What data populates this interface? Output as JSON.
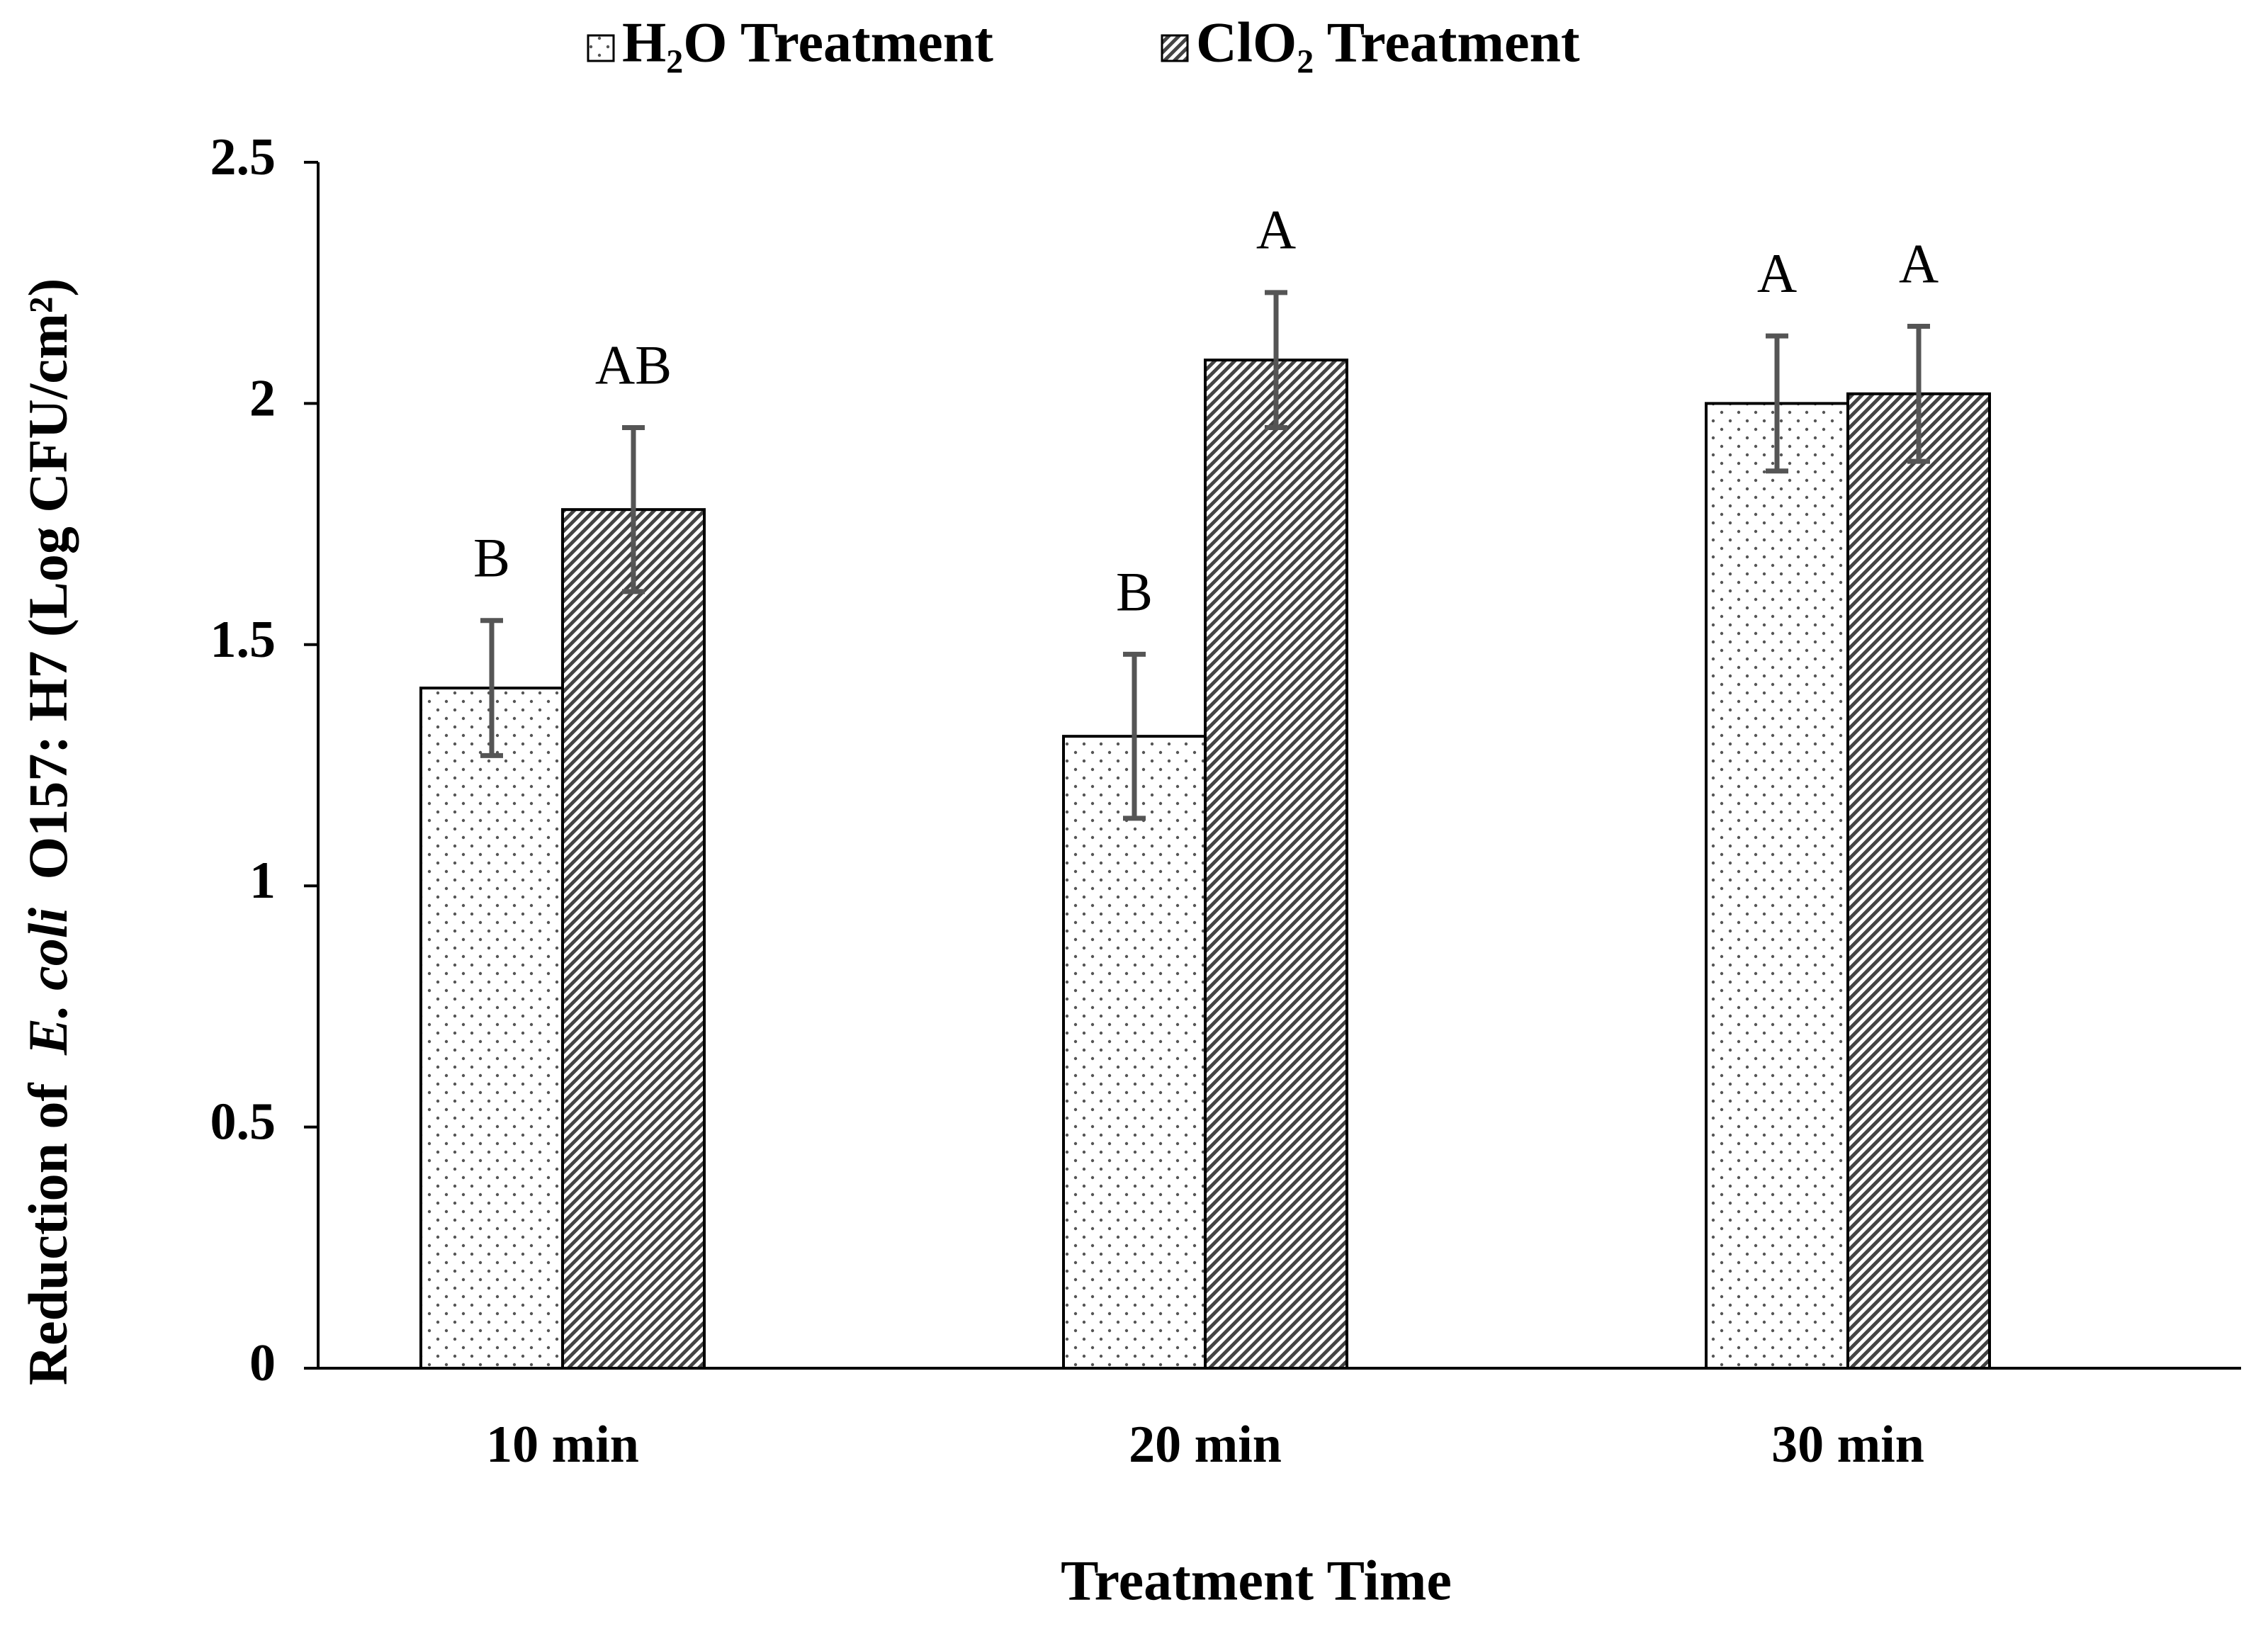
{
  "chart_data": {
    "type": "bar",
    "ylabel": [
      "Reduction of",
      "E. coli",
      "O157: H7 (Log CFU/cm²)"
    ],
    "xlabel": "Treatment Time",
    "categories": [
      "10 min",
      "20 min",
      "30 min"
    ],
    "series": [
      {
        "name": "H₂O Treatment",
        "pattern": "dots",
        "values": [
          1.41,
          1.31,
          2.0
        ],
        "errors": [
          0.14,
          0.17,
          0.14
        ],
        "letters": [
          "B",
          "B",
          "A"
        ]
      },
      {
        "name": "ClO₂ Treatment",
        "pattern": "hatch",
        "values": [
          1.78,
          2.09,
          2.02
        ],
        "errors": [
          0.17,
          0.14,
          0.14
        ],
        "letters": [
          "AB",
          "A",
          "A"
        ]
      }
    ],
    "ylim": [
      0,
      2.5
    ],
    "yticks": [
      0,
      0.5,
      1,
      1.5,
      2,
      2.5
    ],
    "grid": false,
    "legend": "top"
  }
}
